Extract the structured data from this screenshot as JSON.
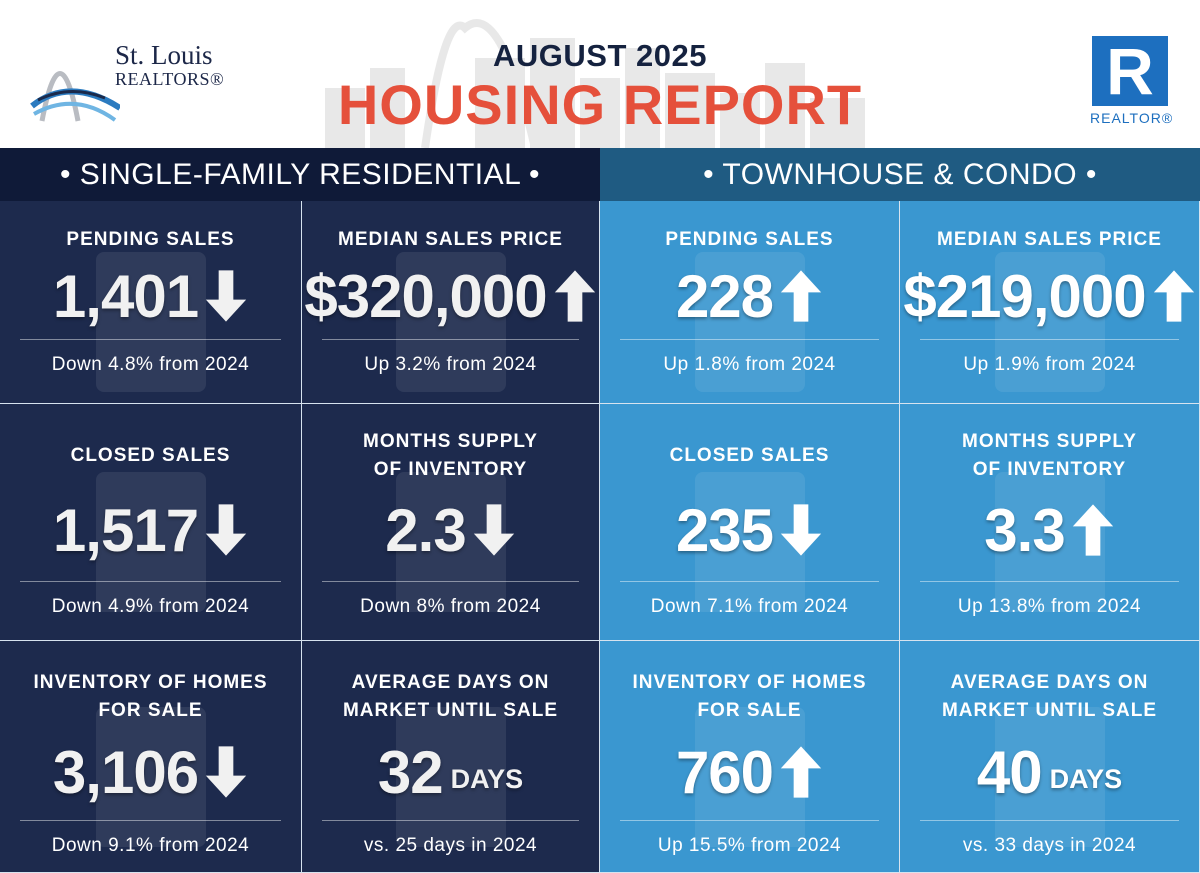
{
  "header": {
    "subtitle": "AUGUST 2025",
    "title": "HOUSING REPORT",
    "logo_left_line1": "St. Louis",
    "logo_left_line2": "REALTORS®",
    "logo_right_letter": "R",
    "logo_right_text": "REALTOR®"
  },
  "colors": {
    "title_red": "#e5503b",
    "navy": "#1d2a4d",
    "navy_band": "#0f1a38",
    "blue": "#3a97d0",
    "blue_band": "#1f5b82"
  },
  "sections": [
    {
      "label": "• SINGLE-FAMILY RESIDENTIAL •",
      "cells": [
        {
          "title": "PENDING SALES",
          "value": "1,401",
          "trend": "down",
          "unit": "",
          "footer": "Down 4.8% from 2024"
        },
        {
          "title": "MEDIAN SALES PRICE",
          "value": "$320,000",
          "trend": "up",
          "unit": "",
          "footer": "Up 3.2% from 2024"
        },
        {
          "title": "CLOSED SALES",
          "value": "1,517",
          "trend": "down",
          "unit": "",
          "footer": "Down 4.9% from 2024"
        },
        {
          "title": "MONTHS SUPPLY\nOF INVENTORY",
          "value": "2.3",
          "trend": "down",
          "unit": "",
          "footer": "Down 8% from 2024"
        },
        {
          "title": "INVENTORY OF HOMES\nFOR SALE",
          "value": "3,106",
          "trend": "down",
          "unit": "",
          "footer": "Down 9.1% from 2024"
        },
        {
          "title": "AVERAGE DAYS ON\nMARKET UNTIL SALE",
          "value": "32",
          "trend": "",
          "unit": "DAYS",
          "footer": "vs. 25 days in 2024"
        }
      ]
    },
    {
      "label": "• TOWNHOUSE & CONDO •",
      "cells": [
        {
          "title": "PENDING SALES",
          "value": "228",
          "trend": "up",
          "unit": "",
          "footer": "Up 1.8% from 2024"
        },
        {
          "title": "MEDIAN SALES PRICE",
          "value": "$219,000",
          "trend": "up",
          "unit": "",
          "footer": "Up 1.9% from 2024"
        },
        {
          "title": "CLOSED SALES",
          "value": "235",
          "trend": "down",
          "unit": "",
          "footer": "Down 7.1% from 2024"
        },
        {
          "title": "MONTHS SUPPLY\nOF INVENTORY",
          "value": "3.3",
          "trend": "up",
          "unit": "",
          "footer": "Up 13.8% from 2024"
        },
        {
          "title": "INVENTORY OF HOMES\nFOR SALE",
          "value": "760",
          "trend": "up",
          "unit": "",
          "footer": "Up 15.5% from 2024"
        },
        {
          "title": "AVERAGE DAYS ON\nMARKET UNTIL SALE",
          "value": "40",
          "trend": "",
          "unit": "DAYS",
          "footer": "vs. 33 days in 2024"
        }
      ]
    }
  ]
}
